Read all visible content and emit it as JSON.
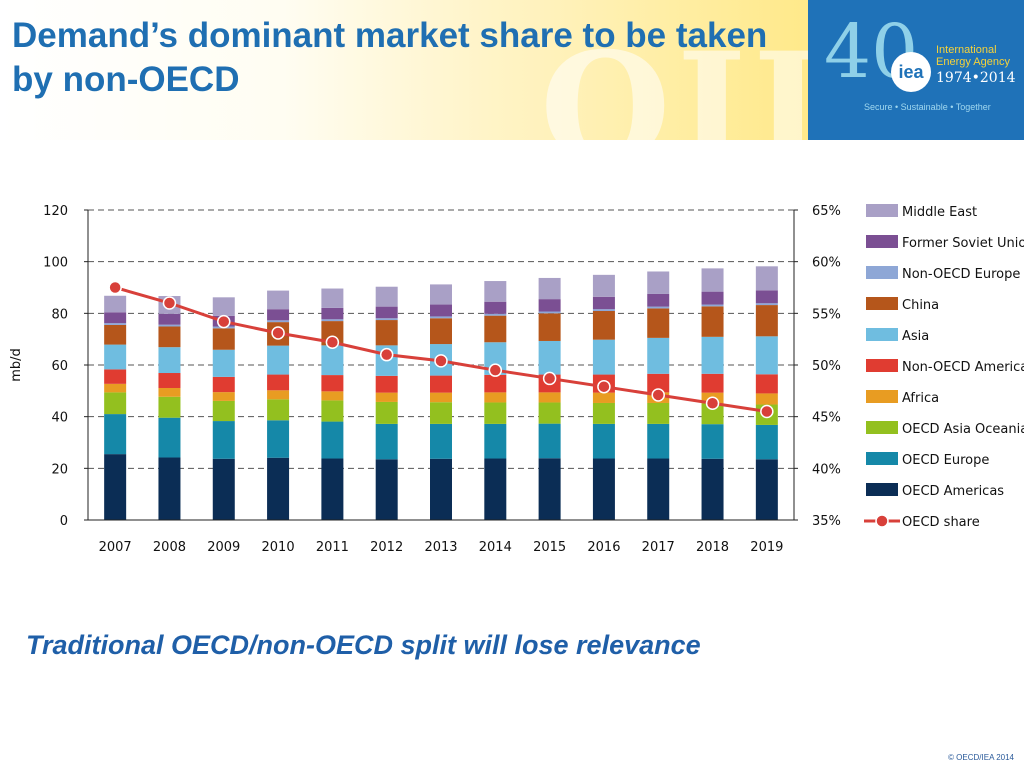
{
  "slide": {
    "title": "Demand’s dominant market share to be taken by non-OECD",
    "header_art_text": "OIL",
    "subtitle": "Traditional OECD/non-OECD split will lose relevance",
    "copyright": "© OECD/IEA 2014"
  },
  "logo": {
    "number": "40",
    "mark": "iea",
    "org_line1": "International",
    "org_line2": "Energy Agency",
    "years": "1974•2014",
    "tagline": "Secure • Sustainable • Together"
  },
  "colors": {
    "title": "#1f6fb2",
    "logo_bg": "#1f72b8",
    "oecd_share_line": "#d8403a"
  },
  "chart_data": {
    "type": "bar",
    "stacked": true,
    "categories": [
      "2007",
      "2008",
      "2009",
      "2010",
      "2011",
      "2012",
      "2013",
      "2014",
      "2015",
      "2016",
      "2017",
      "2018",
      "2019"
    ],
    "ylabel": "mb/d",
    "ylim": [
      0,
      120
    ],
    "yticks": [
      "0",
      "20",
      "40",
      "60",
      "80",
      "100",
      "120"
    ],
    "y2lim": [
      35,
      65
    ],
    "y2ticks": [
      "35%",
      "40%",
      "45%",
      "50%",
      "55%",
      "60%",
      "65%"
    ],
    "grid": "dashed-horizontal",
    "legend_position": "right",
    "series": [
      {
        "name": "OECD Americas",
        "color": "#0b2d55",
        "values": [
          25.5,
          24.2,
          23.7,
          24.1,
          23.8,
          23.5,
          23.7,
          23.8,
          23.9,
          23.8,
          23.8,
          23.7,
          23.5
        ]
      },
      {
        "name": "OECD Europe",
        "color": "#1588a8",
        "values": [
          15.5,
          15.4,
          14.6,
          14.5,
          14.3,
          13.7,
          13.5,
          13.4,
          13.4,
          13.4,
          13.4,
          13.4,
          13.3
        ]
      },
      {
        "name": "OECD Asia Oceania",
        "color": "#93c01f",
        "values": [
          8.4,
          8.1,
          7.8,
          8.1,
          8.2,
          8.5,
          8.4,
          8.3,
          8.2,
          8.1,
          8.1,
          8.0,
          7.9
        ]
      },
      {
        "name": "Africa",
        "color": "#e89c22",
        "values": [
          3.3,
          3.4,
          3.4,
          3.5,
          3.5,
          3.6,
          3.7,
          3.9,
          3.9,
          4.0,
          4.1,
          4.2,
          4.3
        ]
      },
      {
        "name": "Non-OECD Americas",
        "color": "#e03c31",
        "values": [
          5.6,
          5.8,
          5.9,
          6.1,
          6.3,
          6.5,
          6.6,
          6.8,
          6.9,
          7.0,
          7.2,
          7.3,
          7.4
        ]
      },
      {
        "name": "Asia",
        "color": "#6fbde0",
        "values": [
          9.6,
          10.0,
          10.5,
          11.2,
          11.5,
          11.8,
          12.2,
          12.6,
          13.0,
          13.5,
          13.9,
          14.3,
          14.7
        ]
      },
      {
        "name": "China",
        "color": "#b5561b",
        "values": [
          7.6,
          8.0,
          8.3,
          9.1,
          9.4,
          9.8,
          10.0,
          10.3,
          10.7,
          11.1,
          11.4,
          11.8,
          12.1
        ]
      },
      {
        "name": "Non-OECD Europe",
        "color": "#8ea7d6",
        "values": [
          0.7,
          0.7,
          0.7,
          0.7,
          0.7,
          0.7,
          0.7,
          0.7,
          0.7,
          0.7,
          0.7,
          0.7,
          0.7
        ]
      },
      {
        "name": "Former Soviet Union",
        "color": "#7b4f93",
        "values": [
          4.2,
          4.2,
          4.1,
          4.3,
          4.4,
          4.5,
          4.6,
          4.7,
          4.8,
          4.8,
          4.9,
          5.0,
          5.0
        ]
      },
      {
        "name": "Middle East",
        "color": "#a9a0c6",
        "values": [
          6.4,
          6.9,
          7.2,
          7.2,
          7.5,
          7.7,
          7.8,
          8.0,
          8.2,
          8.5,
          8.7,
          9.0,
          9.3
        ]
      }
    ],
    "line_series": {
      "name": "OECD share",
      "axis": "right",
      "unit": "%",
      "color": "#d8403a",
      "values": [
        57.5,
        56.0,
        54.2,
        53.1,
        52.2,
        51.0,
        50.4,
        49.5,
        48.7,
        47.9,
        47.1,
        46.3,
        45.5
      ]
    },
    "legend_order": [
      "Middle East",
      "Former Soviet Union",
      "Non-OECD Europe",
      "China",
      "Asia",
      "Non-OECD Americas",
      "Africa",
      "OECD Asia Oceania",
      "OECD Europe",
      "OECD Americas",
      "OECD share"
    ]
  }
}
